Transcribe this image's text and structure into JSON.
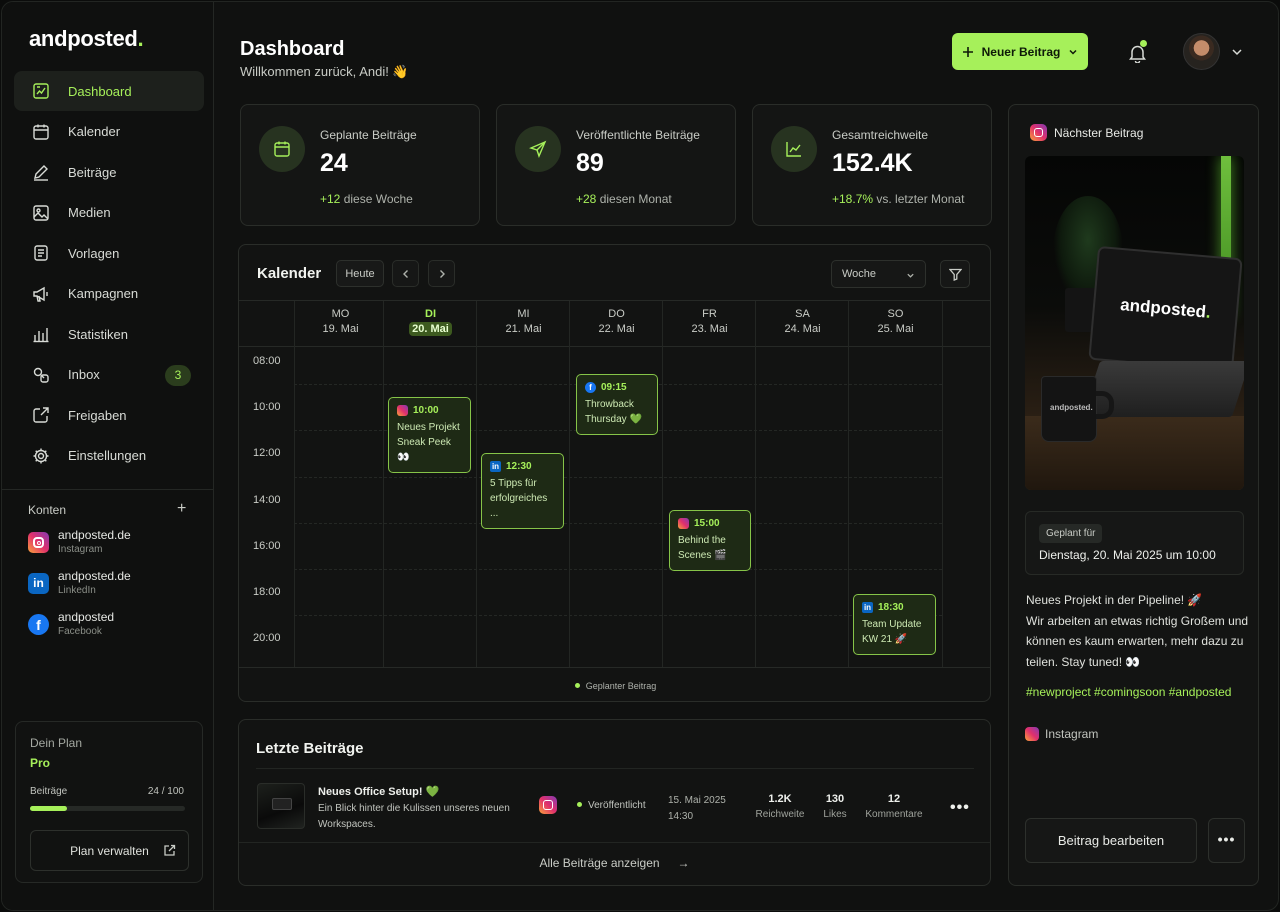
{
  "brand": {
    "name": "andposted",
    "dot": "."
  },
  "nav": [
    {
      "label": "Dashboard",
      "icon": "dashboard-icon",
      "active": true
    },
    {
      "label": "Kalender",
      "icon": "calendar-icon"
    },
    {
      "label": "Beiträge",
      "icon": "pencil-icon"
    },
    {
      "label": "Medien",
      "icon": "image-icon"
    },
    {
      "label": "Vorlagen",
      "icon": "template-icon"
    },
    {
      "label": "Kampagnen",
      "icon": "megaphone-icon"
    },
    {
      "label": "Statistiken",
      "icon": "bar-chart-icon"
    },
    {
      "label": "Inbox",
      "icon": "inbox-icon",
      "badge": "3"
    },
    {
      "label": "Freigaben",
      "icon": "share-icon"
    },
    {
      "label": "Einstellungen",
      "icon": "gear-icon"
    }
  ],
  "accounts": {
    "title": "Konten",
    "items": [
      {
        "name": "andposted.de",
        "platform": "Instagram"
      },
      {
        "name": "andposted.de",
        "platform": "LinkedIn"
      },
      {
        "name": "andposted",
        "platform": "Facebook"
      }
    ]
  },
  "plan": {
    "label": "Dein Plan",
    "name": "Pro",
    "usage_label": "Beiträge",
    "usage": "24 / 100",
    "usage_fraction": 0.24,
    "manage": "Plan verwalten"
  },
  "header": {
    "title": "Dashboard",
    "subtitle": "Willkommen zurück, Andi! 👋",
    "new_post": "Neuer Beitrag"
  },
  "stats": [
    {
      "label": "Geplante Beiträge",
      "value": "24",
      "delta": "+12",
      "delta_text": " diese Woche",
      "icon": "calendar-icon"
    },
    {
      "label": "Veröffentlichte Beiträge",
      "value": "89",
      "delta": "+28",
      "delta_text": " diesen Monat",
      "icon": "send-icon"
    },
    {
      "label": "Gesamtreichweite",
      "value": "152.4K",
      "delta": "+18.7%",
      "delta_text": " vs. letzter Monat",
      "icon": "trend-icon"
    }
  ],
  "calendar": {
    "title": "Kalender",
    "today": "Heute",
    "view": "Woche",
    "days": [
      {
        "name": "MO",
        "date": "19. Mai"
      },
      {
        "name": "DI",
        "date": "20. Mai",
        "active": true
      },
      {
        "name": "MI",
        "date": "21. Mai"
      },
      {
        "name": "DO",
        "date": "22. Mai"
      },
      {
        "name": "FR",
        "date": "23. Mai"
      },
      {
        "name": "SA",
        "date": "24. Mai"
      },
      {
        "name": "SO",
        "date": "25. Mai"
      }
    ],
    "times": [
      "08:00",
      "10:00",
      "12:00",
      "14:00",
      "16:00",
      "18:00",
      "20:00"
    ],
    "events": [
      {
        "time": "10:00",
        "line1": "Neues Projekt",
        "line2": "Sneak Peek 👀",
        "platform": "instagram"
      },
      {
        "time": "12:30",
        "line1": "5 Tipps für",
        "line2": "erfolgreiches ...",
        "platform": "linkedin"
      },
      {
        "time": "09:15",
        "line1": "Throwback",
        "line2": "Thursday 💚",
        "platform": "facebook"
      },
      {
        "time": "15:00",
        "line1": "Behind the",
        "line2": "Scenes 🎬",
        "platform": "instagram"
      },
      {
        "time": "18:30",
        "line1": "Team Update",
        "line2": "KW 21 🚀",
        "platform": "linkedin"
      }
    ],
    "legend": "Geplanter Beitrag"
  },
  "recent": {
    "title": "Letzte Beiträge",
    "post": {
      "name": "Neues Office Setup! 💚",
      "desc": "Ein Blick hinter die Kulissen unseres neuen Workspaces.",
      "status": "Veröffentlicht",
      "date": "15. Mai 2025",
      "time": "14:30",
      "reach": "1.2K",
      "reach_label": "Reichweite",
      "likes": "130",
      "likes_label": "Likes",
      "comments": "12",
      "comments_label": "Kommentare"
    },
    "show_all": "Alle Beiträge anzeigen"
  },
  "next": {
    "title": "Nächster Beitrag",
    "image_text": "andposted",
    "mug_text": "andposted.",
    "scheduled_label": "Geplant für",
    "scheduled": "Dienstag, 20. Mai 2025 um 10:00",
    "caption1": "Neues Projekt in der Pipeline! 🚀",
    "caption2": "Wir arbeiten an etwas richtig Großem und können es kaum erwarten, mehr dazu zu teilen. Stay tuned! 👀",
    "tags": "#newproject #comingsoon #andposted",
    "platform": "Instagram",
    "edit": "Beitrag bearbeiten"
  }
}
